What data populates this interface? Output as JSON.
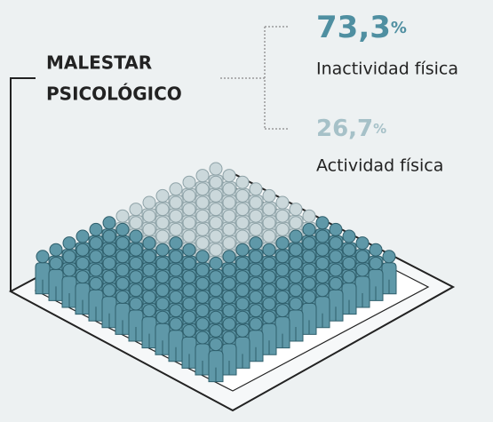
{
  "title": {
    "line1": "MALESTAR",
    "line2": "PSICOLÓGICO"
  },
  "items": [
    {
      "number": "73,3",
      "unit": "%",
      "label": "Inactividad física"
    },
    {
      "number": "26,7",
      "unit": "%",
      "label": "Actividad física"
    }
  ]
}
